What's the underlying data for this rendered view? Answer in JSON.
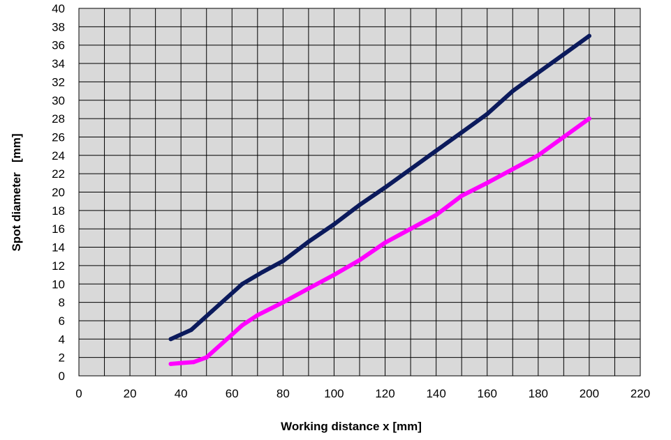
{
  "chart_data": {
    "type": "line",
    "title": "",
    "xlabel": "Working distance x  [mm]",
    "ylabel": "Spot diameter   [mm]",
    "xlim": [
      0,
      220
    ],
    "ylim": [
      0,
      40
    ],
    "xticks": [
      0,
      20,
      40,
      60,
      80,
      100,
      120,
      140,
      160,
      180,
      200,
      220
    ],
    "yticks": [
      0,
      2,
      4,
      6,
      8,
      10,
      12,
      14,
      16,
      18,
      20,
      22,
      24,
      26,
      28,
      30,
      32,
      34,
      36,
      38,
      40
    ],
    "x_minor_gridlines_every": 10,
    "grid": true,
    "plot_background": "#d9d9d9",
    "series": [
      {
        "color": "#0b1a5c",
        "points": [
          [
            36,
            4.0
          ],
          [
            40,
            4.5
          ],
          [
            44,
            5.0
          ],
          [
            52,
            7.0
          ],
          [
            64,
            10.0
          ],
          [
            72,
            11.3
          ],
          [
            80,
            12.5
          ],
          [
            90,
            14.6
          ],
          [
            100,
            16.5
          ],
          [
            110,
            18.6
          ],
          [
            120,
            20.5
          ],
          [
            130,
            22.5
          ],
          [
            140,
            24.5
          ],
          [
            150,
            26.5
          ],
          [
            160,
            28.5
          ],
          [
            170,
            31.0
          ],
          [
            180,
            33.0
          ],
          [
            190,
            35.0
          ],
          [
            200,
            37.0
          ]
        ]
      },
      {
        "color": "#ff00ff",
        "points": [
          [
            36,
            1.3
          ],
          [
            40,
            1.4
          ],
          [
            45,
            1.5
          ],
          [
            50,
            2.0
          ],
          [
            58,
            4.0
          ],
          [
            64,
            5.5
          ],
          [
            70,
            6.6
          ],
          [
            80,
            8.0
          ],
          [
            90,
            9.5
          ],
          [
            100,
            11.0
          ],
          [
            110,
            12.6
          ],
          [
            120,
            14.5
          ],
          [
            130,
            16.0
          ],
          [
            140,
            17.5
          ],
          [
            150,
            19.6
          ],
          [
            160,
            21.0
          ],
          [
            170,
            22.5
          ],
          [
            180,
            24.0
          ],
          [
            190,
            26.0
          ],
          [
            200,
            28.0
          ]
        ]
      }
    ]
  }
}
